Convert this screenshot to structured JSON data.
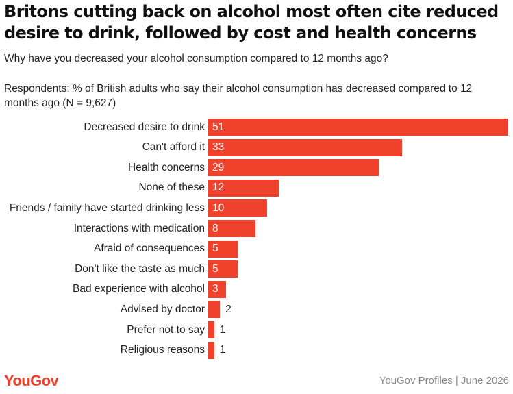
{
  "title_line1": "Britons cutting back on alcohol most often cite reduced",
  "title_line2": "desire to drink, followed by cost and health concerns",
  "subtitle": "Why have you decreased your alcohol consumption compared to 12 months ago?",
  "note": "Respondents: % of British adults who say their alcohol consumption has decreased compared to 12 months ago (N = 9,627)",
  "logo": "YouGov",
  "footer": "YouGov Profiles | June 2026",
  "colors": {
    "bar": "#f0412c",
    "logo": "#f0412c"
  },
  "chart_data": {
    "type": "bar",
    "orientation": "horizontal",
    "categories": [
      "Decreased desire to drink",
      "Can't afford it",
      "Health concerns",
      "None of these",
      "Friends / family have started drinking less",
      "Interactions with medication",
      "Afraid of consequences",
      "Don't like the taste as much",
      "Bad experience with alcohol",
      "Advised by doctor",
      "Prefer not to say",
      "Religious reasons"
    ],
    "values": [
      51,
      33,
      29,
      12,
      10,
      8,
      5,
      5,
      3,
      2,
      1,
      1
    ],
    "xlim": [
      0,
      51
    ],
    "grid": false,
    "legend": "none"
  }
}
